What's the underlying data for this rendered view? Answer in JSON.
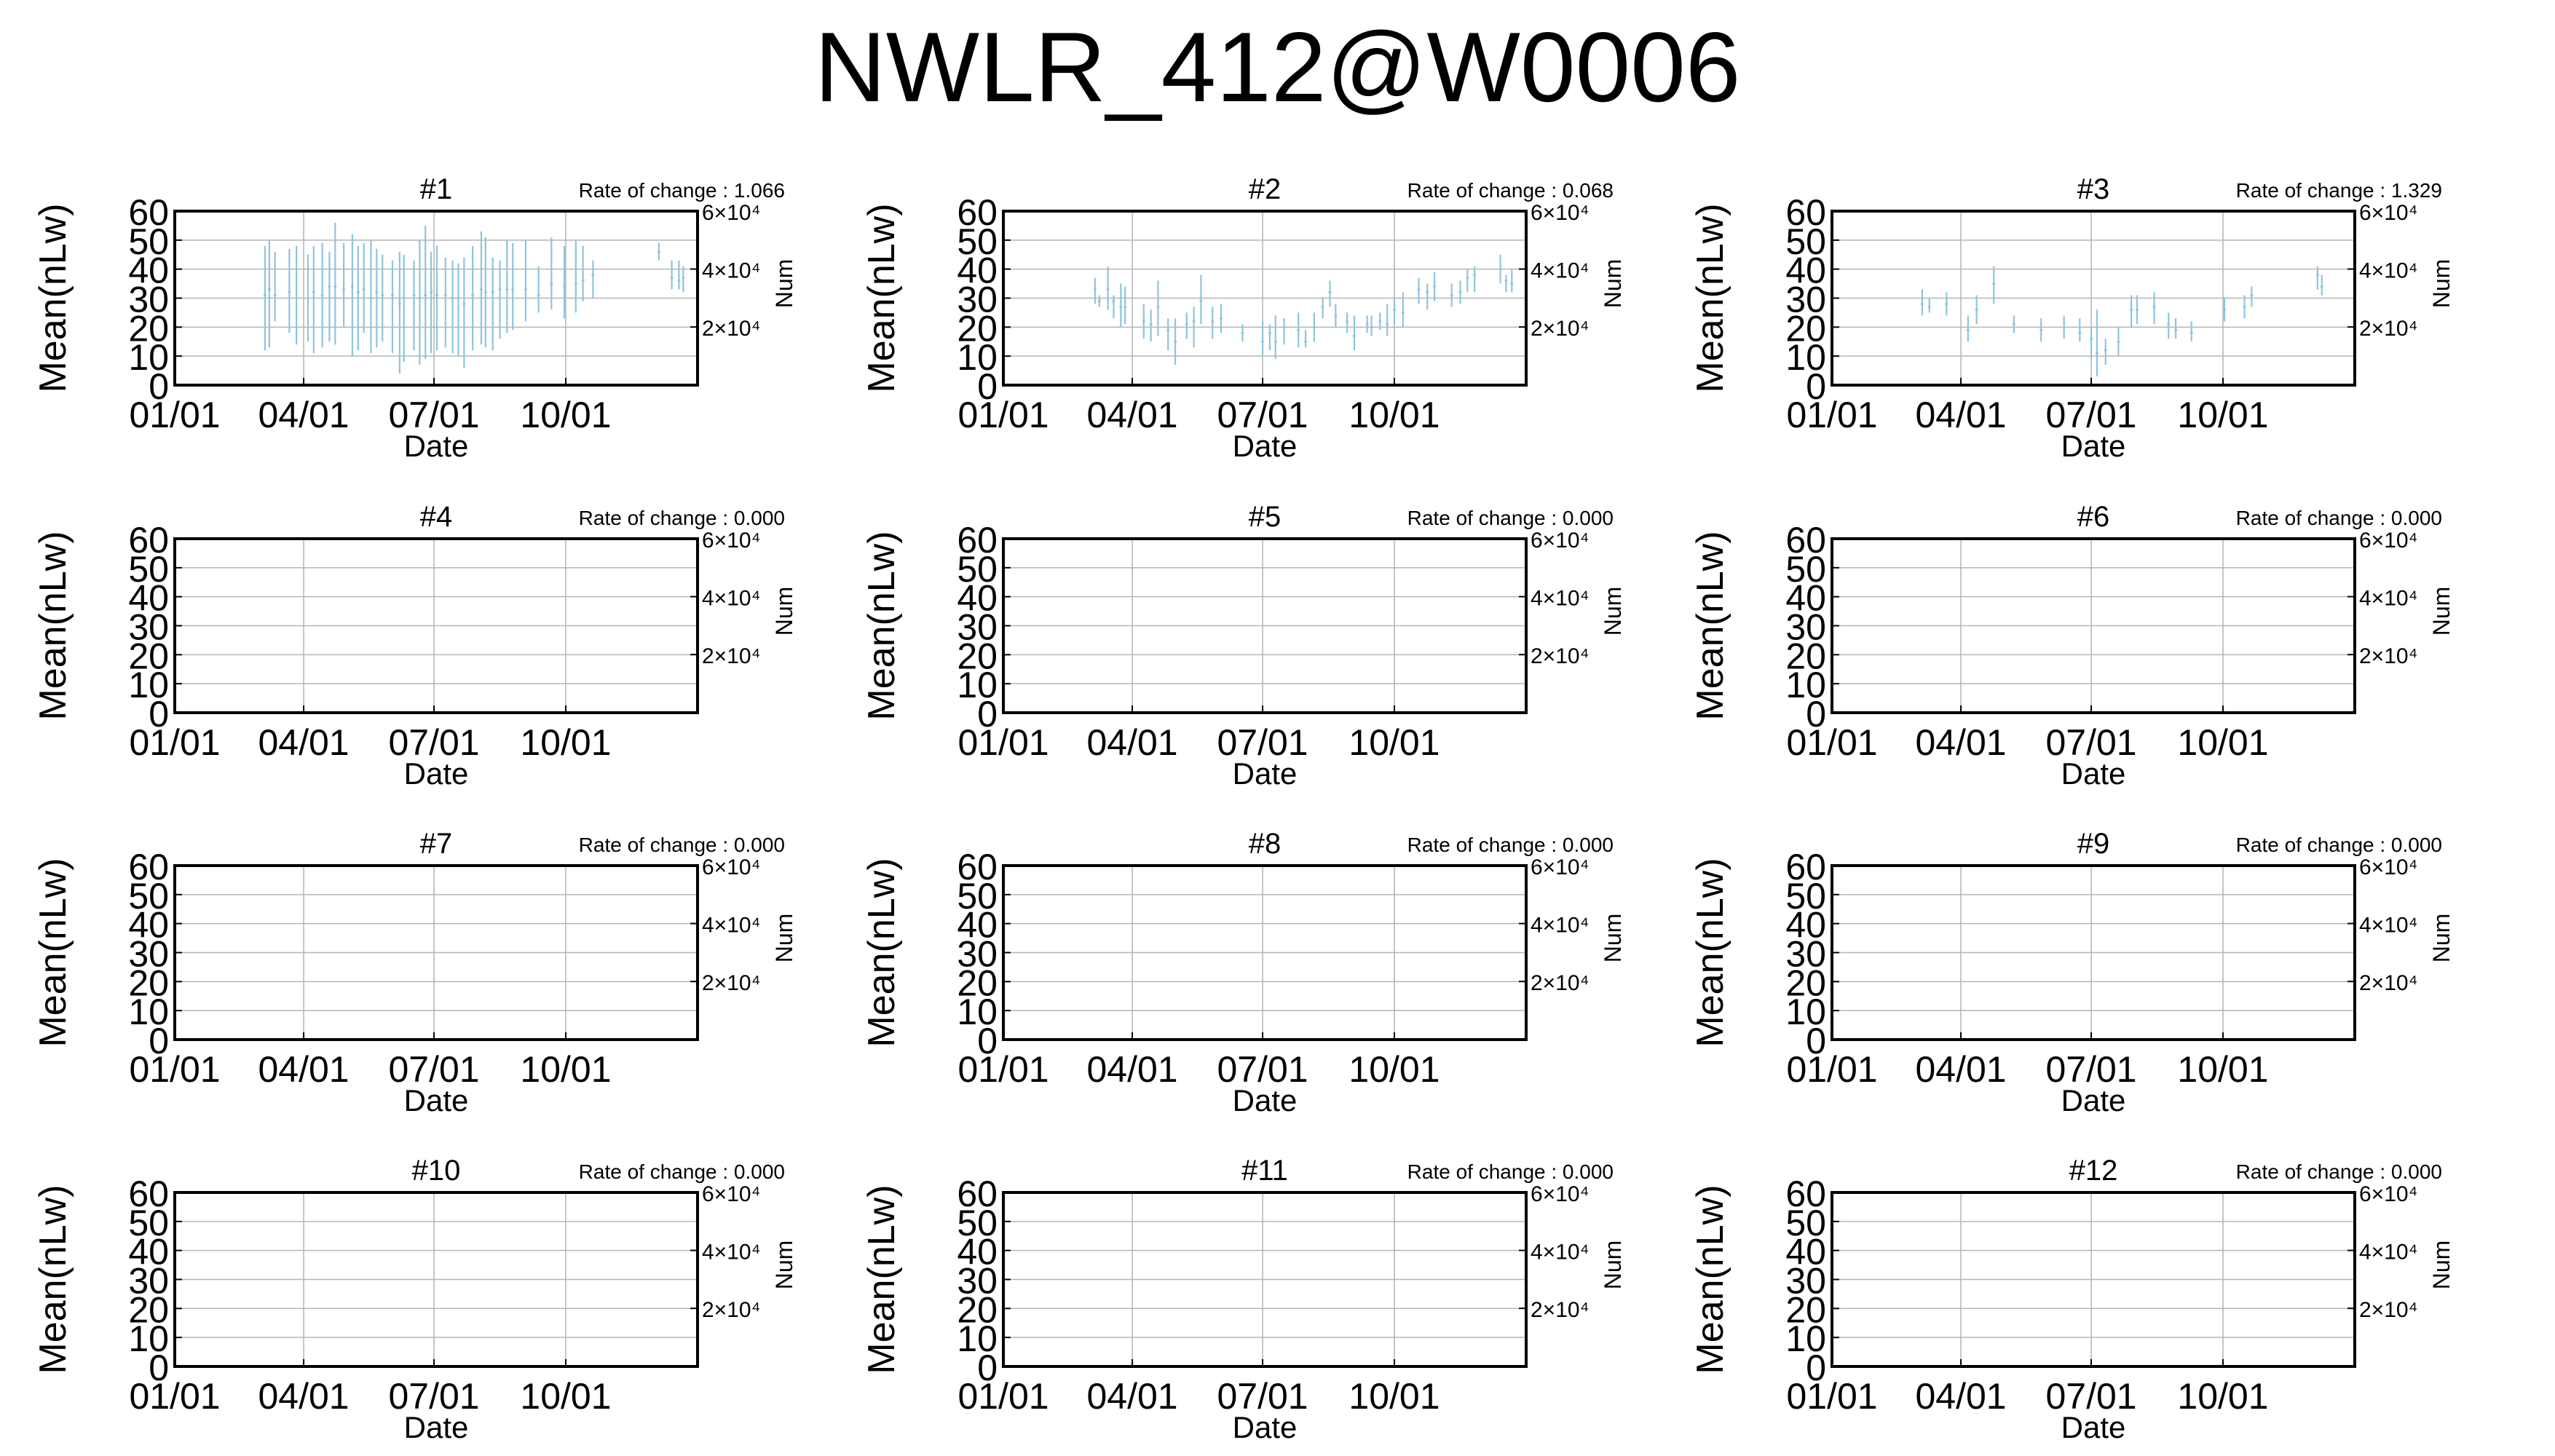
{
  "page": {
    "title": "NWLR_412@W0006"
  },
  "style": {
    "bar_color": "#8fc4dd",
    "grid_color": "#b4b4b4",
    "axis_color": "#000000"
  },
  "chart_data": [
    {
      "type": "errorbar",
      "title": "#1",
      "annotation": "Rate of change : 1.066",
      "ylabel": "Mean(nLw)",
      "y2label": "Num",
      "xlabel": "Date",
      "ylim": [
        0,
        60
      ],
      "yticks": [
        "0",
        "10",
        "20",
        "30",
        "40",
        "50",
        "60"
      ],
      "y2ticks": [
        "2×10⁴",
        "4×10⁴",
        "6×10⁴"
      ],
      "xticks": [
        "01/01",
        "04/01",
        "07/01",
        "10/01"
      ],
      "grid": true,
      "points": [
        [
          63,
          31,
          12,
          48
        ],
        [
          66,
          33,
          13,
          50
        ],
        [
          70,
          31,
          22,
          46
        ],
        [
          80,
          32,
          18,
          47
        ],
        [
          85,
          30,
          14,
          48
        ],
        [
          93,
          30,
          15,
          45
        ],
        [
          97,
          32,
          11,
          48
        ],
        [
          103,
          31,
          13,
          49
        ],
        [
          108,
          34,
          15,
          46
        ],
        [
          112,
          34,
          14,
          56
        ],
        [
          118,
          33,
          20,
          49
        ],
        [
          124,
          34,
          10,
          52
        ],
        [
          128,
          32,
          12,
          48
        ],
        [
          132,
          33,
          18,
          49
        ],
        [
          137,
          30,
          11,
          50
        ],
        [
          141,
          32,
          13,
          47
        ],
        [
          145,
          31,
          15,
          45
        ],
        [
          152,
          31,
          11,
          43
        ],
        [
          157,
          28,
          4,
          46
        ],
        [
          160,
          30,
          8,
          45
        ],
        [
          167,
          31,
          12,
          43
        ],
        [
          171,
          30,
          7,
          50
        ],
        [
          175,
          31,
          9,
          55
        ],
        [
          179,
          32,
          11,
          46
        ],
        [
          183,
          31,
          12,
          48
        ],
        [
          189,
          31,
          13,
          44
        ],
        [
          194,
          30,
          11,
          43
        ],
        [
          198,
          30,
          10,
          42
        ],
        [
          202,
          28,
          6,
          44
        ],
        [
          208,
          31,
          12,
          48
        ],
        [
          214,
          33,
          14,
          53
        ],
        [
          217,
          32,
          13,
          51
        ],
        [
          222,
          32,
          12,
          44
        ],
        [
          227,
          33,
          16,
          43
        ],
        [
          232,
          33,
          18,
          50
        ],
        [
          236,
          33,
          19,
          49
        ],
        [
          245,
          33,
          22,
          50
        ],
        [
          254,
          31,
          25,
          41
        ],
        [
          263,
          35,
          26,
          51
        ],
        [
          272,
          34,
          23,
          48
        ],
        [
          280,
          35,
          25,
          50
        ],
        [
          285,
          36,
          29,
          48
        ],
        [
          292,
          38,
          30,
          43
        ],
        [
          338,
          46,
          43,
          49
        ],
        [
          347,
          37,
          33,
          43
        ],
        [
          352,
          36,
          33,
          43
        ],
        [
          355,
          37,
          32,
          41
        ]
      ]
    },
    {
      "type": "errorbar",
      "title": "#2",
      "annotation": "Rate of change : 0.068",
      "ylabel": "Mean(nLw)",
      "y2label": "Num",
      "xlabel": "Date",
      "ylim": [
        0,
        60
      ],
      "yticks": [
        "0",
        "10",
        "20",
        "30",
        "40",
        "50",
        "60"
      ],
      "y2ticks": [
        "2×10⁴",
        "4×10⁴",
        "6×10⁴"
      ],
      "xticks": [
        "01/01",
        "04/01",
        "07/01",
        "10/01"
      ],
      "grid": true,
      "points": [
        [
          64,
          33,
          28,
          37
        ],
        [
          67,
          29,
          27,
          31
        ],
        [
          73,
          33,
          26,
          41
        ],
        [
          77,
          29,
          23,
          31
        ],
        [
          82,
          27,
          20,
          35
        ],
        [
          85,
          27,
          21,
          34
        ],
        [
          98,
          22,
          16,
          28
        ],
        [
          103,
          21,
          15,
          26
        ],
        [
          108,
          27,
          17,
          36
        ],
        [
          115,
          19,
          12,
          23
        ],
        [
          120,
          15,
          7,
          23
        ],
        [
          128,
          21,
          16,
          25
        ],
        [
          133,
          22,
          13,
          27
        ],
        [
          138,
          29,
          21,
          38
        ],
        [
          146,
          22,
          16,
          27
        ],
        [
          152,
          23,
          18,
          28
        ],
        [
          167,
          18,
          15,
          21
        ],
        [
          181,
          15,
          10,
          22
        ],
        [
          186,
          18,
          12,
          21
        ],
        [
          190,
          15,
          9,
          24
        ],
        [
          196,
          20,
          14,
          23
        ],
        [
          206,
          19,
          13,
          25
        ],
        [
          211,
          15,
          13,
          19
        ],
        [
          217,
          20,
          15,
          25
        ],
        [
          223,
          27,
          23,
          30
        ],
        [
          228,
          32,
          27,
          36
        ],
        [
          232,
          24,
          20,
          28
        ],
        [
          240,
          22,
          18,
          25
        ],
        [
          245,
          17,
          12,
          24
        ],
        [
          254,
          21,
          18,
          24
        ],
        [
          257,
          20,
          17,
          24
        ],
        [
          263,
          22,
          19,
          25
        ],
        [
          268,
          21,
          17,
          28
        ],
        [
          273,
          26,
          21,
          30
        ],
        [
          279,
          25,
          20,
          32
        ],
        [
          290,
          33,
          28,
          37
        ],
        [
          296,
          32,
          26,
          35
        ],
        [
          301,
          34,
          29,
          39
        ],
        [
          313,
          31,
          27,
          35
        ],
        [
          319,
          32,
          28,
          36
        ],
        [
          324,
          37,
          32,
          40
        ],
        [
          329,
          38,
          32,
          41
        ],
        [
          347,
          40,
          35,
          45
        ],
        [
          351,
          36,
          32,
          38
        ],
        [
          355,
          35,
          32,
          40
        ]
      ]
    },
    {
      "type": "errorbar",
      "title": "#3",
      "annotation": "Rate of change : 1.329",
      "ylabel": "Mean(nLw)",
      "y2label": "Num",
      "xlabel": "Date",
      "ylim": [
        0,
        60
      ],
      "yticks": [
        "0",
        "10",
        "20",
        "30",
        "40",
        "50",
        "60"
      ],
      "y2ticks": [
        "2×10⁴",
        "4×10⁴",
        "6×10⁴"
      ],
      "xticks": [
        "01/01",
        "04/01",
        "07/01",
        "10/01"
      ],
      "grid": true,
      "points": [
        [
          63,
          28,
          24,
          33
        ],
        [
          68,
          27,
          25,
          30
        ],
        [
          80,
          28,
          24,
          32
        ],
        [
          95,
          19,
          15,
          24
        ],
        [
          101,
          26,
          21,
          31
        ],
        [
          113,
          35,
          28,
          41
        ],
        [
          127,
          21,
          18,
          24
        ],
        [
          146,
          19,
          15,
          23
        ],
        [
          162,
          20,
          16,
          24
        ],
        [
          173,
          18,
          15,
          23
        ],
        [
          181,
          16,
          9,
          20
        ],
        [
          185,
          11,
          3,
          26
        ],
        [
          191,
          12,
          7,
          16
        ],
        [
          200,
          15,
          10,
          20
        ],
        [
          209,
          26,
          20,
          31
        ],
        [
          213,
          26,
          21,
          31
        ],
        [
          225,
          27,
          21,
          32
        ],
        [
          235,
          21,
          16,
          25
        ],
        [
          240,
          19,
          16,
          23
        ],
        [
          251,
          18,
          15,
          22
        ],
        [
          274,
          26,
          22,
          30
        ],
        [
          288,
          27,
          23,
          31
        ],
        [
          293,
          31,
          27,
          34
        ],
        [
          339,
          38,
          33,
          41
        ],
        [
          342,
          34,
          31,
          38
        ]
      ]
    },
    {
      "type": "errorbar",
      "title": "#4",
      "annotation": "Rate of change : 0.000",
      "ylabel": "Mean(nLw)",
      "y2label": "Num",
      "xlabel": "Date",
      "ylim": [
        0,
        60
      ],
      "yticks": [
        "0",
        "10",
        "20",
        "30",
        "40",
        "50",
        "60"
      ],
      "y2ticks": [
        "2×10⁴",
        "4×10⁴",
        "6×10⁴"
      ],
      "xticks": [
        "01/01",
        "04/01",
        "07/01",
        "10/01"
      ],
      "grid": true,
      "points": []
    },
    {
      "type": "errorbar",
      "title": "#5",
      "annotation": "Rate of change : 0.000",
      "ylabel": "Mean(nLw)",
      "y2label": "Num",
      "xlabel": "Date",
      "ylim": [
        0,
        60
      ],
      "yticks": [
        "0",
        "10",
        "20",
        "30",
        "40",
        "50",
        "60"
      ],
      "y2ticks": [
        "2×10⁴",
        "4×10⁴",
        "6×10⁴"
      ],
      "xticks": [
        "01/01",
        "04/01",
        "07/01",
        "10/01"
      ],
      "grid": true,
      "points": []
    },
    {
      "type": "errorbar",
      "title": "#6",
      "annotation": "Rate of change : 0.000",
      "ylabel": "Mean(nLw)",
      "y2label": "Num",
      "xlabel": "Date",
      "ylim": [
        0,
        60
      ],
      "yticks": [
        "0",
        "10",
        "20",
        "30",
        "40",
        "50",
        "60"
      ],
      "y2ticks": [
        "2×10⁴",
        "4×10⁴",
        "6×10⁴"
      ],
      "xticks": [
        "01/01",
        "04/01",
        "07/01",
        "10/01"
      ],
      "grid": true,
      "points": []
    },
    {
      "type": "errorbar",
      "title": "#7",
      "annotation": "Rate of change : 0.000",
      "ylabel": "Mean(nLw)",
      "y2label": "Num",
      "xlabel": "Date",
      "ylim": [
        0,
        60
      ],
      "yticks": [
        "0",
        "10",
        "20",
        "30",
        "40",
        "50",
        "60"
      ],
      "y2ticks": [
        "2×10⁴",
        "4×10⁴",
        "6×10⁴"
      ],
      "xticks": [
        "01/01",
        "04/01",
        "07/01",
        "10/01"
      ],
      "grid": true,
      "points": []
    },
    {
      "type": "errorbar",
      "title": "#8",
      "annotation": "Rate of change : 0.000",
      "ylabel": "Mean(nLw)",
      "y2label": "Num",
      "xlabel": "Date",
      "ylim": [
        0,
        60
      ],
      "yticks": [
        "0",
        "10",
        "20",
        "30",
        "40",
        "50",
        "60"
      ],
      "y2ticks": [
        "2×10⁴",
        "4×10⁴",
        "6×10⁴"
      ],
      "xticks": [
        "01/01",
        "04/01",
        "07/01",
        "10/01"
      ],
      "grid": true,
      "points": []
    },
    {
      "type": "errorbar",
      "title": "#9",
      "annotation": "Rate of change : 0.000",
      "ylabel": "Mean(nLw)",
      "y2label": "Num",
      "xlabel": "Date",
      "ylim": [
        0,
        60
      ],
      "yticks": [
        "0",
        "10",
        "20",
        "30",
        "40",
        "50",
        "60"
      ],
      "y2ticks": [
        "2×10⁴",
        "4×10⁴",
        "6×10⁴"
      ],
      "xticks": [
        "01/01",
        "04/01",
        "07/01",
        "10/01"
      ],
      "grid": true,
      "points": []
    },
    {
      "type": "errorbar",
      "title": "#10",
      "annotation": "Rate of change : 0.000",
      "ylabel": "Mean(nLw)",
      "y2label": "Num",
      "xlabel": "Date",
      "ylim": [
        0,
        60
      ],
      "yticks": [
        "0",
        "10",
        "20",
        "30",
        "40",
        "50",
        "60"
      ],
      "y2ticks": [
        "2×10⁴",
        "4×10⁴",
        "6×10⁴"
      ],
      "xticks": [
        "01/01",
        "04/01",
        "07/01",
        "10/01"
      ],
      "grid": true,
      "points": []
    },
    {
      "type": "errorbar",
      "title": "#11",
      "annotation": "Rate of change : 0.000",
      "ylabel": "Mean(nLw)",
      "y2label": "Num",
      "xlabel": "Date",
      "ylim": [
        0,
        60
      ],
      "yticks": [
        "0",
        "10",
        "20",
        "30",
        "40",
        "50",
        "60"
      ],
      "y2ticks": [
        "2×10⁴",
        "4×10⁴",
        "6×10⁴"
      ],
      "xticks": [
        "01/01",
        "04/01",
        "07/01",
        "10/01"
      ],
      "grid": true,
      "points": []
    },
    {
      "type": "errorbar",
      "title": "#12",
      "annotation": "Rate of change : 0.000",
      "ylabel": "Mean(nLw)",
      "y2label": "Num",
      "xlabel": "Date",
      "ylim": [
        0,
        60
      ],
      "yticks": [
        "0",
        "10",
        "20",
        "30",
        "40",
        "50",
        "60"
      ],
      "y2ticks": [
        "2×10⁴",
        "4×10⁴",
        "6×10⁴"
      ],
      "xticks": [
        "01/01",
        "04/01",
        "07/01",
        "10/01"
      ],
      "grid": true,
      "points": []
    }
  ]
}
